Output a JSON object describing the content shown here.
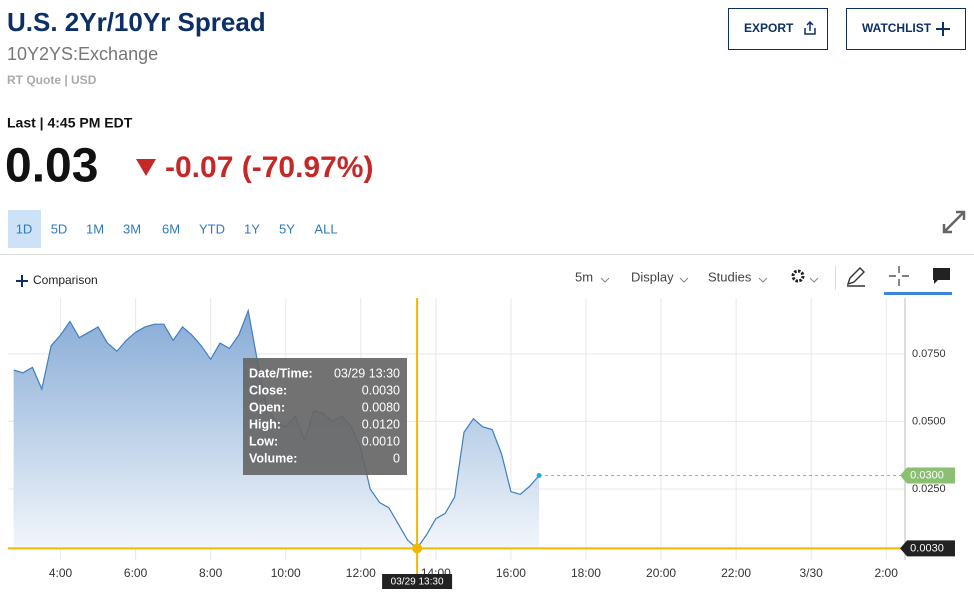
{
  "header": {
    "title": "U.S. 2Yr/10Yr Spread",
    "symbol": "10Y2YS:Exchange",
    "quote_info": "RT Quote | USD",
    "export": "EXPORT",
    "watchlist": "WATCHLIST"
  },
  "quote": {
    "label": "Last | 4:45 PM EDT",
    "price": "0.03",
    "change": "-0.07 (-70.97%)"
  },
  "ranges": [
    "1D",
    "5D",
    "1M",
    "3M",
    "6M",
    "YTD",
    "1Y",
    "5Y",
    "ALL"
  ],
  "toolbar": {
    "comparison": "Comparison",
    "interval": "5m",
    "display": "Display",
    "studies": "Studies"
  },
  "chart_data": {
    "type": "area",
    "color": "#3f7fbf",
    "grid": true,
    "x": [
      2.75,
      3,
      3.25,
      3.5,
      3.75,
      4,
      4.25,
      4.5,
      4.75,
      5,
      5.25,
      5.5,
      5.75,
      6,
      6.25,
      6.5,
      6.75,
      7,
      7.25,
      7.5,
      7.75,
      8,
      8.25,
      8.5,
      8.75,
      9,
      9.25,
      9.5,
      9.75,
      10,
      10.25,
      10.5,
      10.75,
      11,
      11.25,
      11.5,
      11.75,
      12,
      12.25,
      12.5,
      12.75,
      13,
      13.25,
      13.5,
      13.75,
      14,
      14.25,
      14.5,
      14.75,
      15,
      15.25,
      15.5,
      15.75,
      16,
      16.25,
      16.5,
      16.75
    ],
    "values": [
      0.069,
      0.068,
      0.07,
      0.062,
      0.078,
      0.082,
      0.087,
      0.081,
      0.083,
      0.085,
      0.079,
      0.076,
      0.08,
      0.083,
      0.085,
      0.086,
      0.086,
      0.08,
      0.085,
      0.082,
      0.078,
      0.073,
      0.079,
      0.077,
      0.082,
      0.091,
      0.072,
      0.055,
      0.05,
      0.048,
      0.052,
      0.043,
      0.054,
      0.053,
      0.05,
      0.052,
      0.048,
      0.04,
      0.025,
      0.02,
      0.018,
      0.012,
      0.006,
      0.003,
      0.008,
      0.014,
      0.016,
      0.022,
      0.046,
      0.051,
      0.048,
      0.047,
      0.038,
      0.024,
      0.023,
      0.026,
      0.03
    ],
    "xlim": [
      2.6,
      26.5
    ],
    "ylim": [
      -0.0013,
      0.0957
    ],
    "xticks": [
      {
        "value": 4,
        "label": "4:00"
      },
      {
        "value": 6,
        "label": "6:00"
      },
      {
        "value": 8,
        "label": "8:00"
      },
      {
        "value": 10,
        "label": "10:00"
      },
      {
        "value": 12,
        "label": "12:00"
      },
      {
        "value": 14,
        "label": "14:00"
      },
      {
        "value": 16,
        "label": "16:00"
      },
      {
        "value": 18,
        "label": "18:00"
      },
      {
        "value": 20,
        "label": "20:00"
      },
      {
        "value": 22,
        "label": "22:00"
      },
      {
        "value": 24,
        "label": "3/30"
      },
      {
        "value": 26,
        "label": "2:00"
      }
    ],
    "yticks": [
      {
        "value": 0.025,
        "label": "0.0250"
      },
      {
        "value": 0.05,
        "label": "0.0500"
      },
      {
        "value": 0.075,
        "label": "0.0750"
      }
    ],
    "last": {
      "value": 0.03,
      "label": "0.0300"
    },
    "crosshair": {
      "x": 13.5,
      "y": 0.003,
      "x_label": "03/29 13:30",
      "y_label": "0.0030"
    },
    "tooltip": [
      [
        "Date/Time:",
        "03/29 13:30"
      ],
      [
        "Close:",
        "0.0030"
      ],
      [
        "Open:",
        "0.0080"
      ],
      [
        "High:",
        "0.0120"
      ],
      [
        "Low:",
        "0.0010"
      ],
      [
        "Volume:",
        "0"
      ]
    ]
  }
}
